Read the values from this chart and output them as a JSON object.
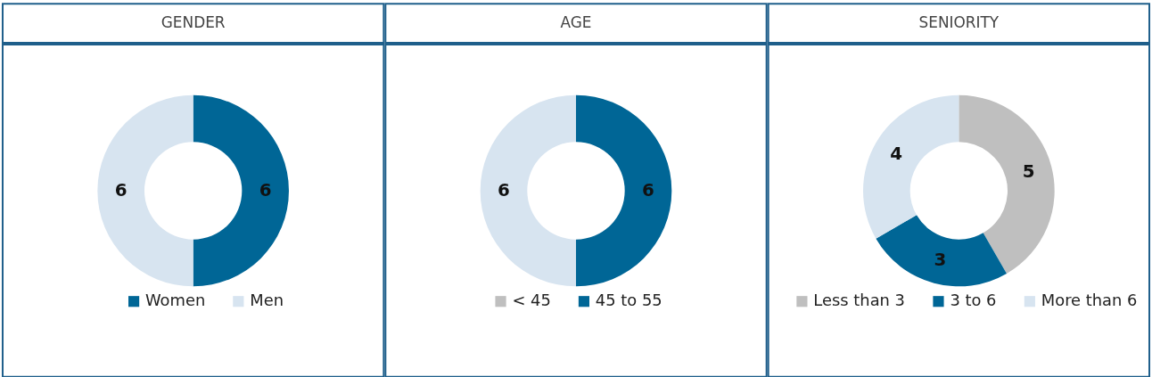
{
  "chart_data": [
    {
      "type": "donut",
      "title": "GENDER",
      "categories": [
        "Women",
        "Men"
      ],
      "values": [
        6,
        6
      ],
      "colors": [
        "#006696",
        "#d7e4f0"
      ],
      "value_labels": [
        "6",
        "6"
      ],
      "legend": "bottom"
    },
    {
      "type": "donut",
      "title": "AGE",
      "categories": [
        "< 45",
        "45 to 55",
        null
      ],
      "values": [
        0,
        6,
        6
      ],
      "colors": [
        "#bfbfbf",
        "#006696",
        "#d7e4f0"
      ],
      "value_labels": [
        null,
        "6",
        "6"
      ],
      "legend": "bottom"
    },
    {
      "type": "donut",
      "title": "SENIORITY",
      "categories": [
        "Less than 3",
        "3 to 6",
        "More than 6"
      ],
      "values": [
        5,
        3,
        4
      ],
      "colors": [
        "#bfbfbf",
        "#006696",
        "#d7e4f0"
      ],
      "value_labels": [
        "5",
        "3",
        "4"
      ],
      "legend": "bottom"
    }
  ]
}
